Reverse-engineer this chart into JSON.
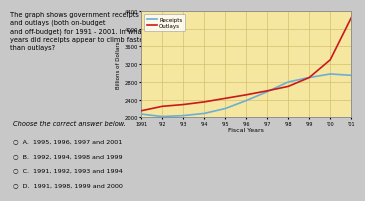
{
  "title_text": "The graph shows government receipts\nand outlays (both on-budget\nand off-budget) for 1991 - 2001. In what\nyears did receipts appear to climb faster\nthan outlays?",
  "years": [
    1991,
    1992,
    1993,
    1994,
    1995,
    1996,
    1997,
    1998,
    1999,
    2000,
    2001
  ],
  "receipts_color": "#6baed6",
  "outlays_color": "#cb181d",
  "ylabel": "Billions of Dollars",
  "xlabel": "Fiscal Years",
  "ylim_lo": 2000,
  "ylim_hi": 4400,
  "yticks": [
    2000,
    2400,
    2800,
    3200,
    3600,
    4000,
    4400
  ],
  "bg_color": "#f5e6a0",
  "grid_color": "#d4c070",
  "outer_bg": "#c8c8c8",
  "answer_header": "Choose the correct answer below.",
  "answer_choices": [
    "A.  1995, 1996, 1997 and 2001",
    "B.  1992, 1994, 1998 and 1999",
    "C.  1991, 1992, 1993 and 1994",
    "D.  1991, 1998, 1999 and 2000"
  ],
  "receipts_vals": [
    2075,
    2020,
    2040,
    2090,
    2200,
    2380,
    2580,
    2800,
    2900,
    2980,
    2950
  ],
  "outlays_vals": [
    2150,
    2250,
    2290,
    2350,
    2430,
    2510,
    2600,
    2700,
    2900,
    3300,
    4250
  ],
  "xticklabels": [
    "1991",
    "'92",
    "'93",
    "'94",
    "'95",
    "'96",
    "'97",
    "'98",
    "'99",
    "'00",
    "'01"
  ],
  "legend_receipts": "Receipts",
  "legend_outlays": "Outlays"
}
